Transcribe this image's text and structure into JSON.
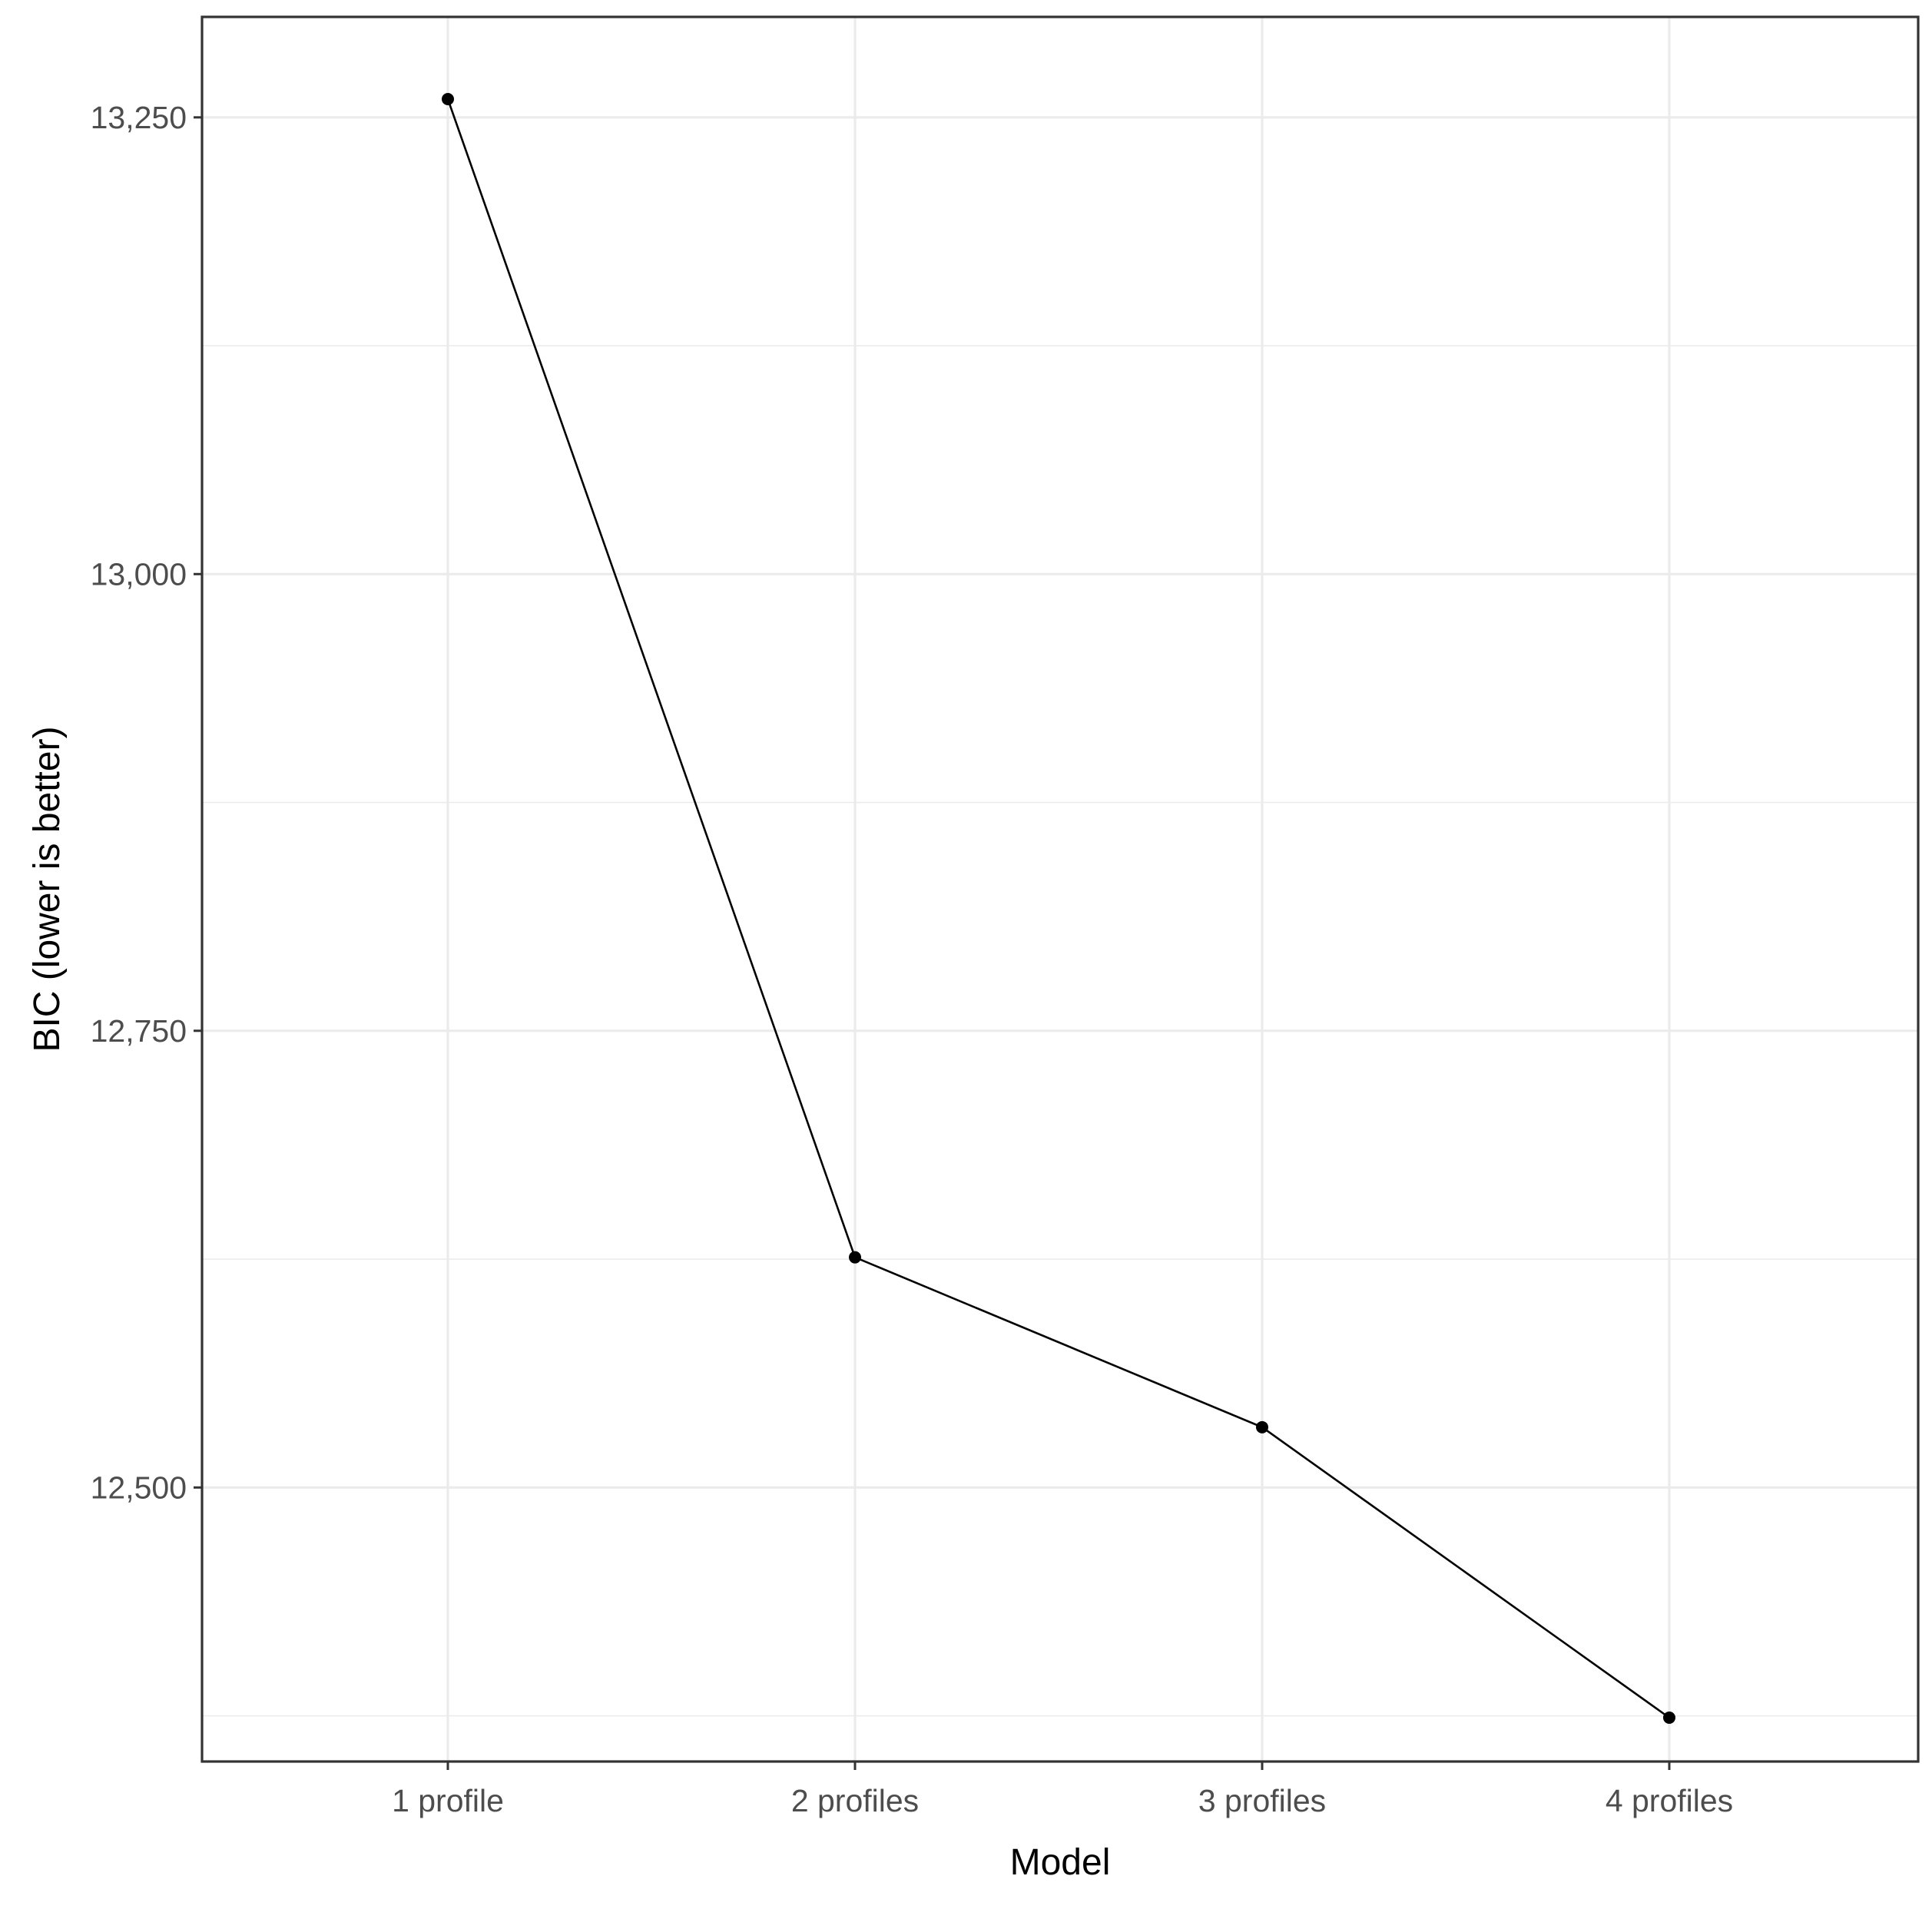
{
  "chart_data": {
    "type": "line",
    "title": "",
    "xlabel": "Model",
    "ylabel": "BIC (lower is better)",
    "categories": [
      "1 profile",
      "2 profiles",
      "3 profiles",
      "4 profiles"
    ],
    "series": [
      {
        "values": [
          13260,
          12626,
          12533,
          12374
        ]
      }
    ],
    "ylim": [
      12350,
      13305
    ],
    "y_ticks": [
      12500,
      12750,
      13000,
      13250
    ],
    "y_tick_labels": [
      "12,500",
      "12,750",
      "13,000",
      "13,250"
    ],
    "y_minor_ticks": [
      12375,
      12625,
      12875,
      13125
    ],
    "grid": true,
    "legend": "none",
    "colors": {
      "line": "#000000",
      "point": "#000000",
      "grid": "#ebebeb",
      "panel_border": "#333333"
    }
  }
}
